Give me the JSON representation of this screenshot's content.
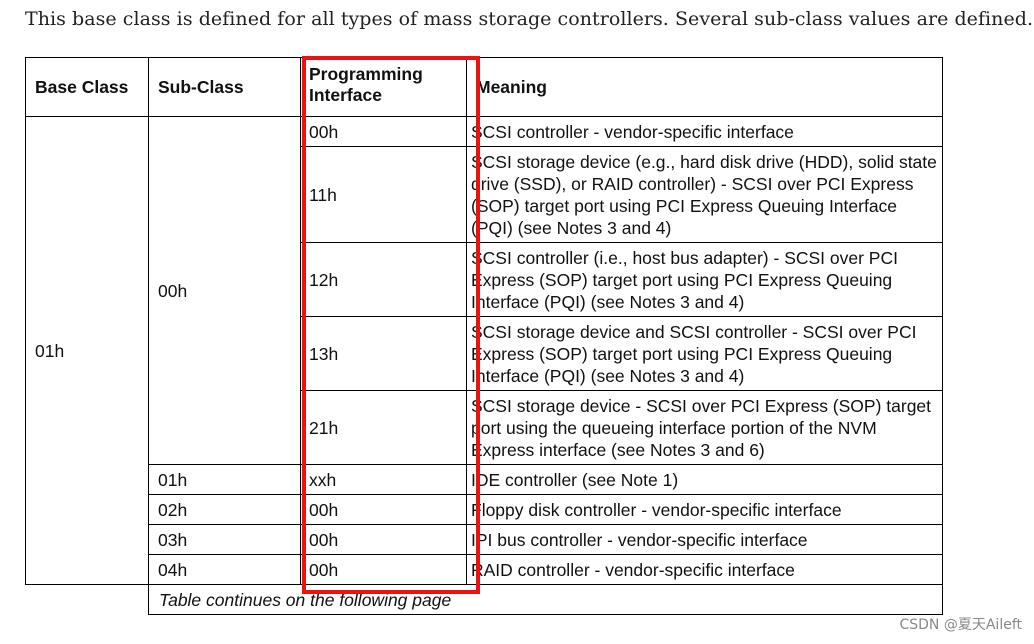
{
  "intro_text": "This base class is defined for all types of mass storage controllers. Several sub-class values are defined.",
  "table": {
    "headers": {
      "base_class": "Base Class",
      "sub_class": "Sub-Class",
      "prog_if_line1": "Programming",
      "prog_if_line2": "Interface",
      "meaning": "Meaning"
    },
    "base_class_value": "01h",
    "subclass_00h": "00h",
    "rows": [
      {
        "sub_class": "",
        "prog_if": "00h",
        "meaning": "SCSI controller - vendor-specific interface"
      },
      {
        "sub_class": "",
        "prog_if": "11h",
        "meaning": "SCSI storage device (e.g., hard disk drive (HDD), solid state drive (SSD), or RAID controller) - SCSI over PCI Express (SOP) target port using PCI Express Queuing Interface (PQI) (see Notes 3 and 4)"
      },
      {
        "sub_class": "",
        "prog_if": "12h",
        "meaning": "SCSI controller (i.e., host bus adapter) - SCSI over PCI Express (SOP) target port using PCI Express Queuing Interface (PQI) (see Notes 3 and 4)"
      },
      {
        "sub_class": "",
        "prog_if": "13h",
        "meaning": "SCSI storage device and SCSI controller - SCSI over PCI Express (SOP) target port using PCI Express Queuing Interface (PQI) (see Notes 3 and 4)"
      },
      {
        "sub_class": "",
        "prog_if": "21h",
        "meaning": "SCSI storage device - SCSI over PCI Express (SOP) target port using the queueing interface portion of the NVM Express interface (see Notes 3 and 6)"
      },
      {
        "sub_class": "01h",
        "prog_if": "xxh",
        "meaning": "IDE controller (see Note 1)"
      },
      {
        "sub_class": "02h",
        "prog_if": "00h",
        "meaning": "Floppy disk controller - vendor-specific interface"
      },
      {
        "sub_class": "03h",
        "prog_if": "00h",
        "meaning": "IPI bus controller - vendor-specific interface"
      },
      {
        "sub_class": "04h",
        "prog_if": "00h",
        "meaning": "RAID controller - vendor-specific interface"
      }
    ],
    "continuation": "Table continues on the following page"
  },
  "highlight_color": "#ee1111",
  "watermark": "CSDN @夏天Aileft"
}
